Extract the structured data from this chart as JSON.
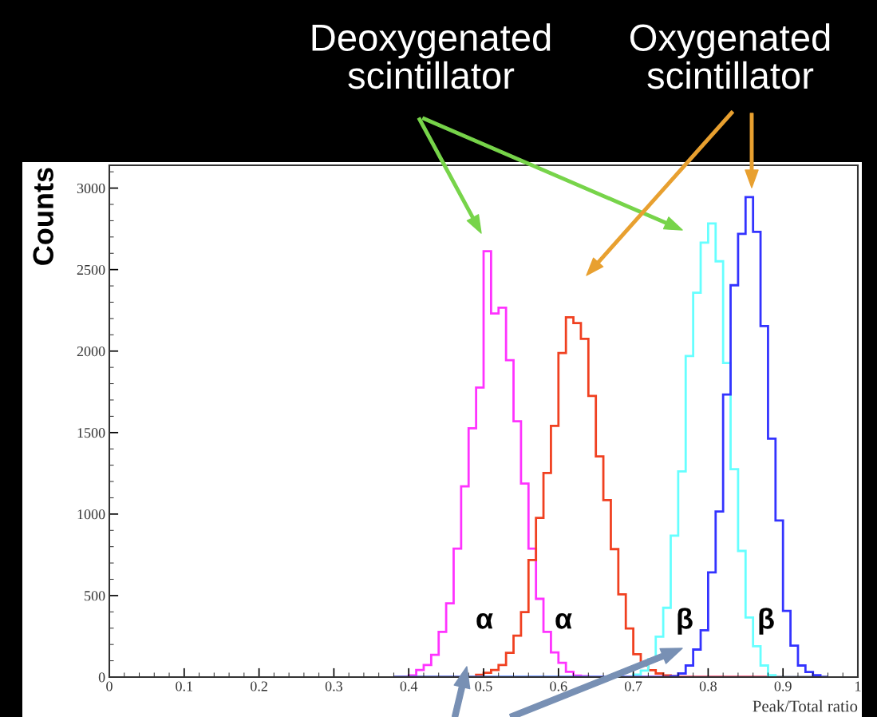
{
  "chart_data": {
    "type": "histogram",
    "xlabel": "Peak/Total ratio",
    "ylabel": "Counts",
    "bins": [
      0.38,
      0.39,
      0.4,
      0.41,
      0.42,
      0.43,
      0.44,
      0.45,
      0.46,
      0.47,
      0.48,
      0.49,
      0.5,
      0.51,
      0.52,
      0.53,
      0.54,
      0.55,
      0.56,
      0.57,
      0.58,
      0.59,
      0.6,
      0.61,
      0.62,
      0.63,
      0.64,
      0.65,
      0.66,
      0.67,
      0.68,
      0.69,
      0.7,
      0.71,
      0.72,
      0.73,
      0.74,
      0.75,
      0.76,
      0.77,
      0.78,
      0.79,
      0.8,
      0.81,
      0.82,
      0.83,
      0.84,
      0.85,
      0.86,
      0.87,
      0.88,
      0.89,
      0.9,
      0.91,
      0.92,
      0.93,
      0.94,
      0.95,
      0.96
    ],
    "series": [
      {
        "color": "#ff33ff",
        "values": [
          0,
          3,
          10,
          44,
          74,
          137,
          277,
          452,
          788,
          1170,
          1527,
          1776,
          2613,
          2231,
          2266,
          1944,
          1569,
          1187,
          788,
          480,
          277,
          151,
          88,
          32,
          9,
          5,
          0,
          0,
          0,
          0,
          0,
          0,
          0,
          0,
          0,
          0,
          0,
          0,
          0,
          0,
          0,
          0,
          0,
          0,
          0,
          0,
          0,
          0,
          0,
          0,
          0,
          0,
          0,
          0,
          0,
          0,
          0,
          0
        ]
      },
      {
        "color": "#f04020",
        "values": [
          0,
          0,
          0,
          0,
          0,
          0,
          0,
          0,
          0,
          0,
          0,
          14,
          26,
          44,
          74,
          149,
          254,
          399,
          718,
          977,
          1252,
          1541,
          1988,
          2207,
          2172,
          2075,
          1725,
          1354,
          1086,
          785,
          508,
          298,
          140,
          72,
          42,
          22,
          10,
          5,
          0,
          0,
          0,
          0,
          0,
          0,
          0,
          0,
          0,
          0,
          0,
          0,
          0,
          0,
          0,
          0,
          0,
          0,
          0,
          0
        ]
      },
      {
        "color": "#66ffff",
        "values": [
          0,
          0,
          0,
          0,
          0,
          0,
          0,
          0,
          0,
          0,
          0,
          0,
          0,
          0,
          0,
          0,
          0,
          0,
          0,
          0,
          0,
          0,
          0,
          0,
          0,
          0,
          0,
          0,
          0,
          0,
          0,
          0,
          15,
          40,
          110,
          248,
          425,
          868,
          1262,
          1970,
          2358,
          2665,
          2783,
          2551,
          1927,
          1276,
          774,
          366,
          189,
          71,
          12,
          0,
          0,
          0,
          0,
          0,
          0,
          0
        ]
      },
      {
        "color": "#3333ff",
        "values": [
          0,
          0,
          0,
          0,
          0,
          0,
          0,
          0,
          0,
          0,
          0,
          0,
          0,
          0,
          0,
          0,
          0,
          0,
          0,
          0,
          0,
          0,
          0,
          0,
          0,
          0,
          0,
          0,
          0,
          0,
          0,
          0,
          0,
          0,
          0,
          0,
          0,
          5,
          22,
          71,
          169,
          287,
          642,
          1016,
          1734,
          2404,
          2719,
          2945,
          2732,
          2154,
          1463,
          961,
          406,
          193,
          71,
          31,
          12,
          0
        ]
      }
    ],
    "xlim": [
      0,
      1
    ],
    "xticks": [
      0,
      0.1,
      0.2,
      0.3,
      0.4,
      0.5,
      0.6,
      0.7,
      0.8,
      0.9,
      1
    ],
    "ylim": [
      0,
      3140
    ],
    "yticks": [
      0,
      500,
      1000,
      1500,
      2000,
      2500,
      3000
    ],
    "grid": false,
    "annotations": [
      "Deoxygenated\nscintillator",
      "Oxygenated\nscintillator",
      "α",
      "α",
      "β",
      "β"
    ]
  }
}
